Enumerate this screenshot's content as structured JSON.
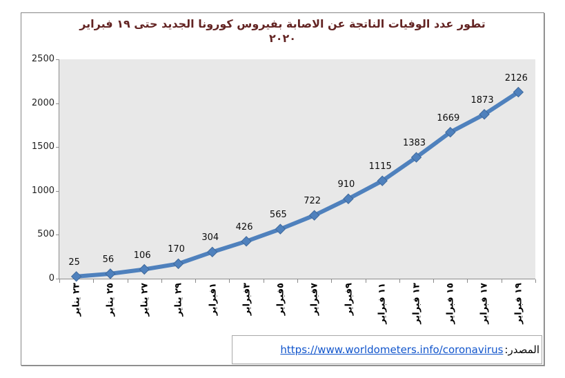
{
  "chart_data": {
    "type": "line",
    "title_line1": "تطور عدد الوفيات الناتجة عن الاصابة بفيروس كورونا الجديد حتى ١٩ فبراير",
    "title_line2": "٢٠٢٠",
    "categories": [
      "٢٣ يناير",
      "٢٥ يناير",
      "٢٧ يناير",
      "٢٩ يناير",
      "١فبراير",
      "٣فبراير",
      "٥فبراير",
      "٧فبراير",
      "٩فبراير",
      "١١ فبراير",
      "١٣ فبراير",
      "١٥ فبراير",
      "١٧ فبراير",
      "١٩ فبراير"
    ],
    "values": [
      25,
      56,
      106,
      170,
      304,
      426,
      565,
      722,
      910,
      1115,
      1383,
      1669,
      1873,
      2126
    ],
    "yticks": [
      0,
      500,
      1000,
      1500,
      2000,
      2500
    ],
    "ylim": [
      0,
      2500
    ],
    "xlabel": "",
    "ylabel": "",
    "grid": false,
    "legend": "none",
    "marker": "diamond",
    "line_color": "#4F81BD",
    "marker_stroke_color": "#3E689B",
    "plot_bg_color": "#E8E8E8",
    "title_color": "#632423",
    "data_labels": true
  },
  "footer": {
    "label": "المصدر:",
    "url": "https://www.worldometers.info/coronavirus",
    "link_color": "#1155CC"
  }
}
